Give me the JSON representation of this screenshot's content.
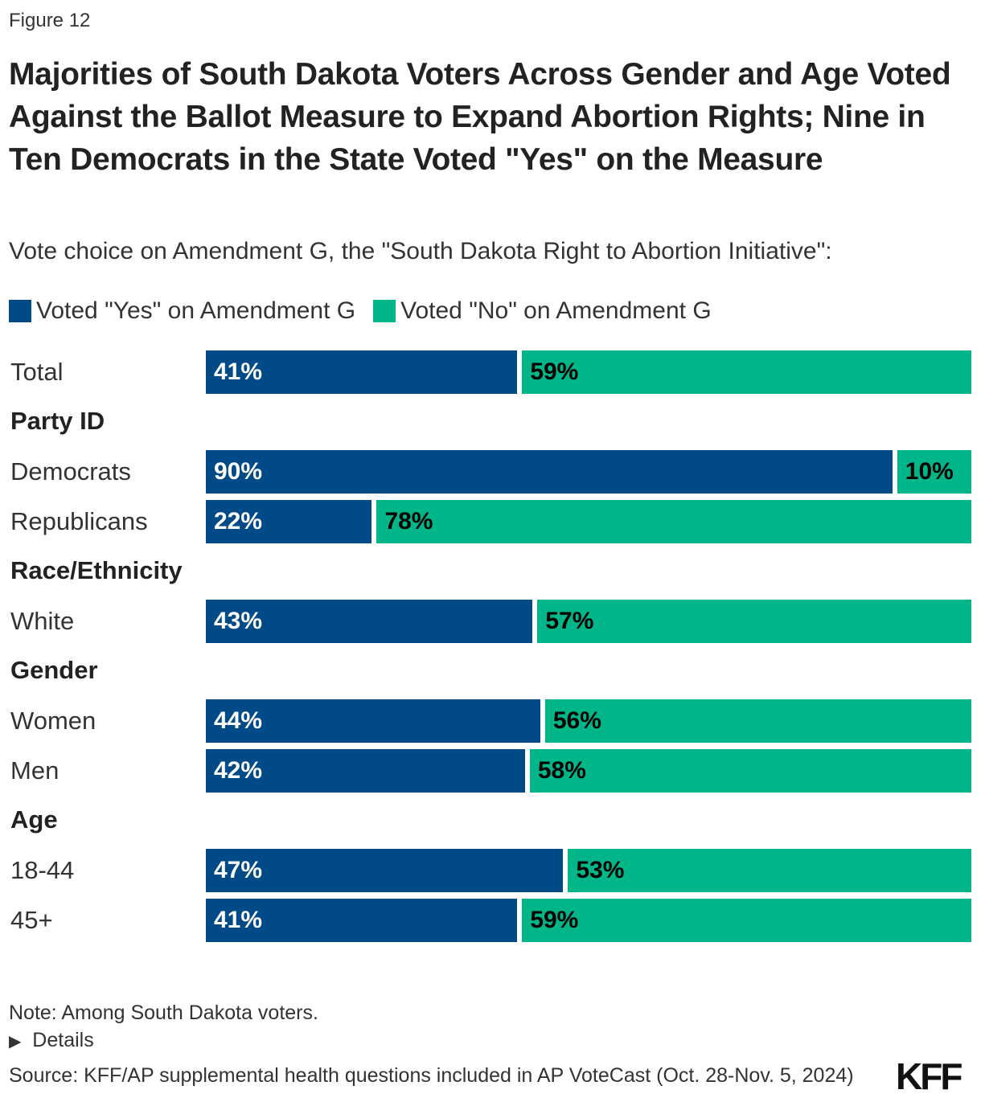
{
  "figure_label": "Figure 12",
  "chart_data": {
    "type": "bar",
    "stacked": true,
    "orientation": "horizontal",
    "title": "Majorities of South Dakota Voters Across Gender and Age Voted Against the Ballot Measure to Expand Abortion Rights; Nine in Ten Democrats in the State Voted \"Yes\" on the Measure",
    "subtitle": "Vote choice on Amendment G, the \"South Dakota Right to Abortion Initiative\":",
    "legend_placement": "top-left",
    "xlim": [
      0,
      100
    ],
    "grid": false,
    "series": [
      {
        "name": "Voted \"Yes\" on Amendment G",
        "color": "#004a87",
        "label_color": "#ffffff"
      },
      {
        "name": "Voted \"No\" on Amendment G",
        "color": "#00b588",
        "label_color": "#000000"
      }
    ],
    "rows": [
      {
        "label": "Total",
        "values": [
          41,
          59
        ],
        "labels": [
          "41%",
          "59%"
        ]
      },
      {
        "group": "Party ID"
      },
      {
        "label": "Democrats",
        "values": [
          90,
          10
        ],
        "labels": [
          "90%",
          "10%"
        ]
      },
      {
        "label": "Republicans",
        "values": [
          22,
          78
        ],
        "labels": [
          "22%",
          "78%"
        ]
      },
      {
        "group": "Race/Ethnicity"
      },
      {
        "label": "White",
        "values": [
          43,
          57
        ],
        "labels": [
          "43%",
          "57%"
        ]
      },
      {
        "group": "Gender"
      },
      {
        "label": "Women",
        "values": [
          44,
          56
        ],
        "labels": [
          "44%",
          "56%"
        ]
      },
      {
        "label": "Men",
        "values": [
          42,
          58
        ],
        "labels": [
          "42%",
          "58%"
        ]
      },
      {
        "group": "Age"
      },
      {
        "label": "18-44",
        "values": [
          47,
          53
        ],
        "labels": [
          "47%",
          "53%"
        ]
      },
      {
        "label": "45+",
        "values": [
          41,
          59
        ],
        "labels": [
          "41%",
          "59%"
        ]
      }
    ]
  },
  "footer": {
    "note": "Note: Among South Dakota voters.",
    "details": "Details",
    "details_icon": "triangle-right-icon",
    "source": "Source: KFF/AP supplemental health questions included in AP VoteCast (Oct. 28-Nov. 5, 2024)",
    "logo": "KFF"
  }
}
